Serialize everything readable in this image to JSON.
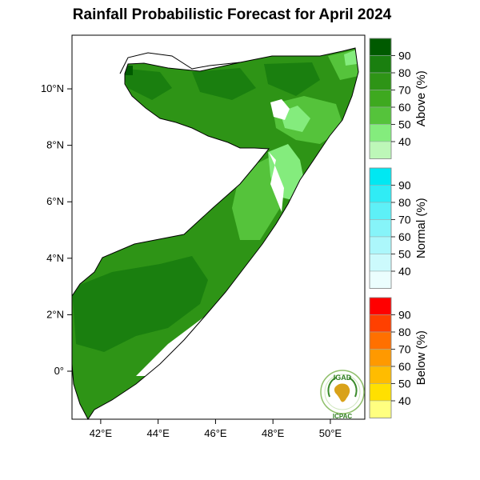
{
  "title": "Rainfall Probabilistic Forecast for April 2024",
  "map": {
    "region": "Somalia",
    "lon_range": [
      41,
      51.2
    ],
    "lat_range": [
      -1.7,
      11.9
    ],
    "x_ticks": [
      {
        "value": 42,
        "label": "42°E"
      },
      {
        "value": 44,
        "label": "44°E"
      },
      {
        "value": 46,
        "label": "46°E"
      },
      {
        "value": 48,
        "label": "48°E"
      },
      {
        "value": 50,
        "label": "50°E"
      }
    ],
    "y_ticks": [
      {
        "value": 10,
        "label": "10°N"
      },
      {
        "value": 8,
        "label": "8°N"
      },
      {
        "value": 6,
        "label": "6°N"
      },
      {
        "value": 4,
        "label": "4°N"
      },
      {
        "value": 2,
        "label": "2°N"
      },
      {
        "value": 0,
        "label": "0°"
      }
    ]
  },
  "legends": [
    {
      "title": "Above (%)",
      "labels": [
        "90",
        "80",
        "70",
        "60",
        "50",
        "40"
      ],
      "colors": [
        "#005a00",
        "#1a7f0f",
        "#2e9416",
        "#3ea91f",
        "#55c33b",
        "#84ec7d",
        "#bdf7b8"
      ]
    },
    {
      "title": "Normal (%)",
      "labels": [
        "90",
        "80",
        "70",
        "60",
        "50",
        "40"
      ],
      "colors": [
        "#00e8f2",
        "#30ecf5",
        "#5df0f7",
        "#86f4f9",
        "#acf7fb",
        "#ccfafc",
        "#ebfefe"
      ]
    },
    {
      "title": "Below (%)",
      "labels": [
        "90",
        "80",
        "70",
        "60",
        "50",
        "40"
      ],
      "colors": [
        "#ff0000",
        "#ff4000",
        "#ff7000",
        "#ff9900",
        "#ffbc00",
        "#ffe000",
        "#ffff80"
      ]
    }
  ],
  "logo": {
    "top_text": "IGAD",
    "bottom_text": "ICPAC",
    "colors": {
      "ring": "#3a8a2a",
      "africa": "#d9a21a",
      "text": "#2e7d1f"
    }
  },
  "colors": {
    "high_green": "#1a7f0f",
    "mid_green": "#2e9416",
    "light_green": "#55c33b",
    "pale_green": "#84ec7d"
  }
}
